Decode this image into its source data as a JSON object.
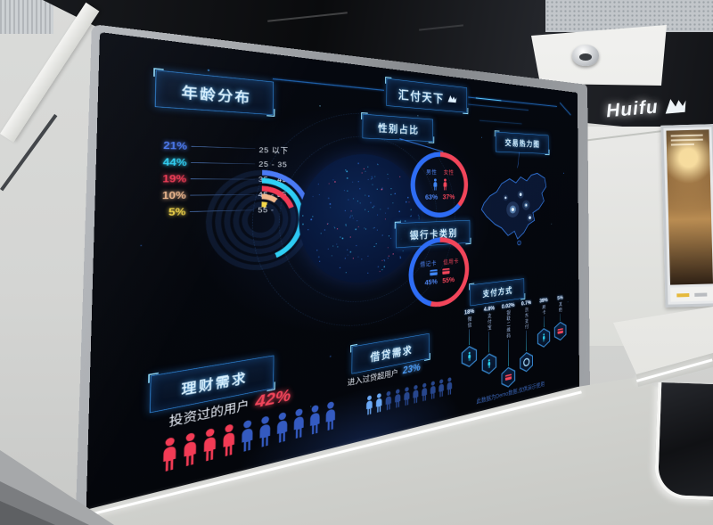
{
  "scene": {
    "wall_logo": "Huifu"
  },
  "dashboard": {
    "title": "汇付天下",
    "note": "此数据为Demo数据,仅供演示使用",
    "panels": {
      "age": {
        "label": "年龄分布"
      },
      "gender": {
        "label": "性别占比",
        "male": "男性",
        "female": "女性",
        "male_pct": "63%",
        "female_pct": "37%"
      },
      "heat": {
        "label": "交易热力图"
      },
      "card": {
        "label": "银行卡类别",
        "debit": "借记卡",
        "credit": "信用卡",
        "debit_pct": "45%",
        "credit_pct": "55%"
      },
      "pay": {
        "label": "支付方式"
      },
      "wealth": {
        "label": "理财需求",
        "desc": "投资过的用户",
        "pct": "42%"
      },
      "loan": {
        "label": "借贷需求",
        "desc": "进入过贷超用户",
        "pct": "23%"
      }
    }
  },
  "chart_data": [
    {
      "id": "age",
      "type": "bar",
      "layout": "radial",
      "title": "年龄分布",
      "categories": [
        "25 以下",
        "25 - 35",
        "35 - 45",
        "45 - 55",
        "55 -"
      ],
      "values": [
        21,
        44,
        19,
        10,
        5
      ],
      "unit": "%",
      "colors": [
        "#4b7bf5",
        "#2fd0f5",
        "#f23b55",
        "#f0b98e",
        "#f5d84a"
      ]
    },
    {
      "id": "gender",
      "type": "pie",
      "title": "性别占比",
      "categories": [
        "男性",
        "女性"
      ],
      "values": [
        63,
        37
      ],
      "unit": "%",
      "colors": [
        "#2e6df5",
        "#f2455a"
      ],
      "legend_position": "center"
    },
    {
      "id": "heat",
      "type": "heatmap",
      "title": "交易热力图",
      "region": "中国",
      "hotspots": 5
    },
    {
      "id": "card",
      "type": "pie",
      "title": "银行卡类别",
      "categories": [
        "借记卡",
        "信用卡"
      ],
      "values": [
        45,
        55
      ],
      "unit": "%",
      "colors": [
        "#2e6df5",
        "#f2455a"
      ],
      "legend_position": "center"
    },
    {
      "id": "payment",
      "type": "bar",
      "title": "支付方式",
      "categories": [
        "微信",
        "支付宝",
        "银联二维码",
        "京东支付",
        "刷卡",
        "其他"
      ],
      "values": [
        18,
        4.8,
        0.02,
        0.7,
        39,
        5
      ],
      "unit": "%",
      "display": [
        "18%",
        "4.8%",
        "0.02%",
        "0.7%",
        "39%",
        "5%"
      ]
    },
    {
      "id": "wealth",
      "type": "bar",
      "title": "理财需求",
      "label": "投资过的用户",
      "value": 42,
      "unit": "%",
      "pictograph_total": 10,
      "pictograph_highlighted": 4
    },
    {
      "id": "loan",
      "type": "bar",
      "title": "借贷需求",
      "label": "进入过贷超用户",
      "value": 23,
      "unit": "%",
      "pictograph_total": 10,
      "pictograph_highlighted": 2
    }
  ]
}
